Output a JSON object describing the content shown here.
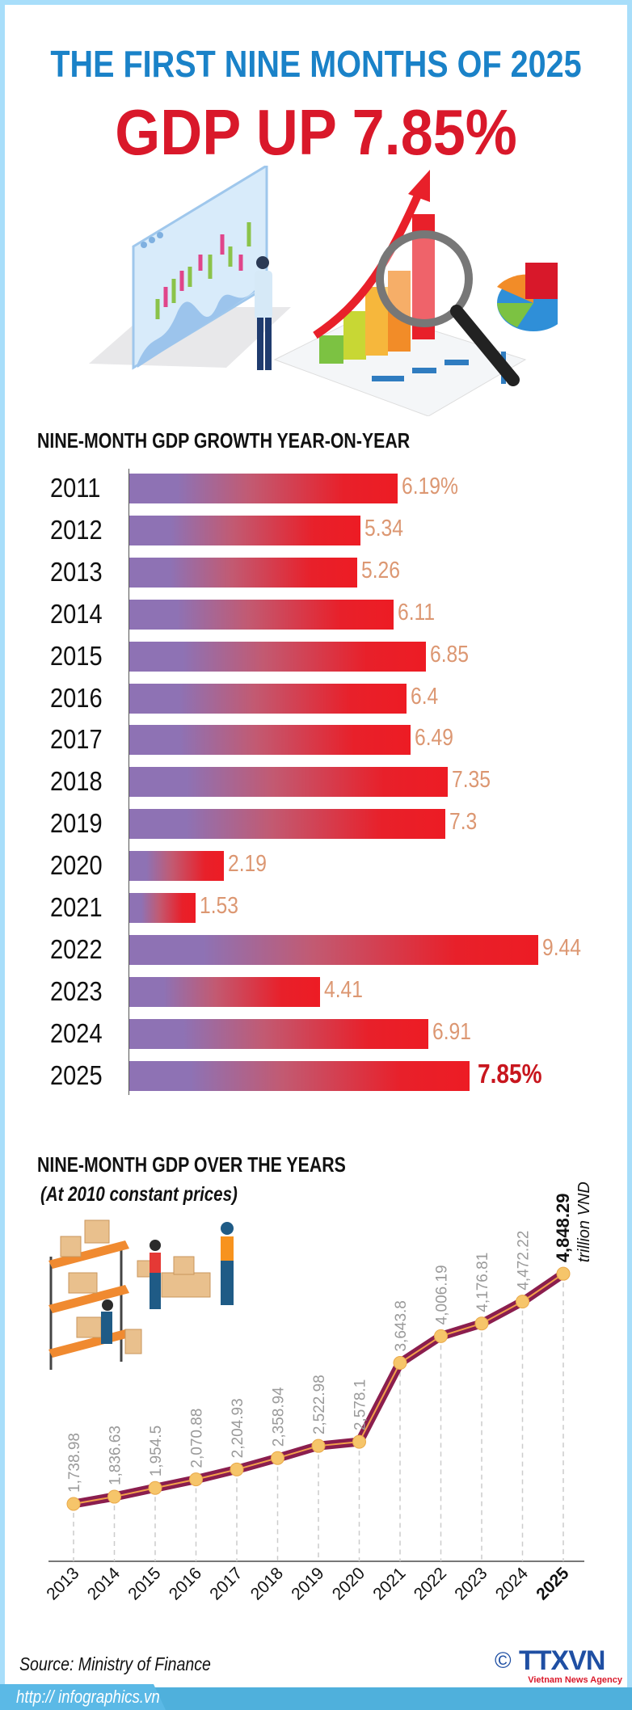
{
  "header": {
    "title_top": "THE FIRST NINE MONTHS OF 2025",
    "title_main": "GDP UP 7.85%"
  },
  "colors": {
    "blue_title": "#1a82c8",
    "red_title": "#d9182a",
    "bar_start": "#8e72b4",
    "bar_end": "#ed1c24",
    "value_label": "#dc9772",
    "line": "#8b1e4e",
    "marker": "#f6c56a"
  },
  "illustration": {
    "icon": "business-analytics-illustration"
  },
  "chart_data": [
    {
      "type": "bar",
      "orientation": "horizontal",
      "title": "NINE-MONTH GDP GROWTH YEAR-ON-YEAR",
      "categories": [
        "2011",
        "2012",
        "2013",
        "2014",
        "2015",
        "2016",
        "2017",
        "2018",
        "2019",
        "2020",
        "2021",
        "2022",
        "2023",
        "2024",
        "2025"
      ],
      "values": [
        6.19,
        5.34,
        5.26,
        6.11,
        6.85,
        6.4,
        6.49,
        7.35,
        7.3,
        2.19,
        1.53,
        9.44,
        4.41,
        6.91,
        7.85
      ],
      "labels": [
        "6.19%",
        "5.34",
        "5.26",
        "6.11",
        "6.85",
        "6.4",
        "6.49",
        "7.35",
        "7.3",
        "2.19",
        "1.53",
        "9.44",
        "4.41",
        "6.91",
        "7.85%"
      ],
      "unit": "%",
      "highlight": "2025",
      "grid": false
    },
    {
      "type": "line",
      "title": "NINE-MONTH GDP OVER THE YEARS",
      "subtitle": "(At 2010 constant prices)",
      "categories": [
        "2013",
        "2014",
        "2015",
        "2016",
        "2017",
        "2018",
        "2019",
        "2020",
        "2021",
        "2022",
        "2023",
        "2024",
        "2025"
      ],
      "values": [
        1738.98,
        1836.63,
        1954.5,
        2070.88,
        2204.93,
        2358.94,
        2522.98,
        2578.1,
        3643.8,
        4006.19,
        4176.81,
        4472.22,
        4848.29
      ],
      "labels": [
        "1,738.98",
        "1,836.63",
        "1,954.5",
        "2,070.88",
        "2,204.93",
        "2,358.94",
        "2,522.98",
        "2,578.1",
        "3,643.8",
        "4,006.19",
        "4,176.81",
        "4,472.22",
        "4,848.29"
      ],
      "unit": "trillion VND",
      "highlight": "2025",
      "grid": false
    }
  ],
  "warehouse_illustration": {
    "icon": "warehouse-workers-illustration"
  },
  "footer": {
    "source": "Source: Ministry of Finance",
    "url": "http:// infographics.vn",
    "copyright": "©",
    "logo": "TTXVN",
    "logo_sub": "Vietnam News Agency"
  }
}
